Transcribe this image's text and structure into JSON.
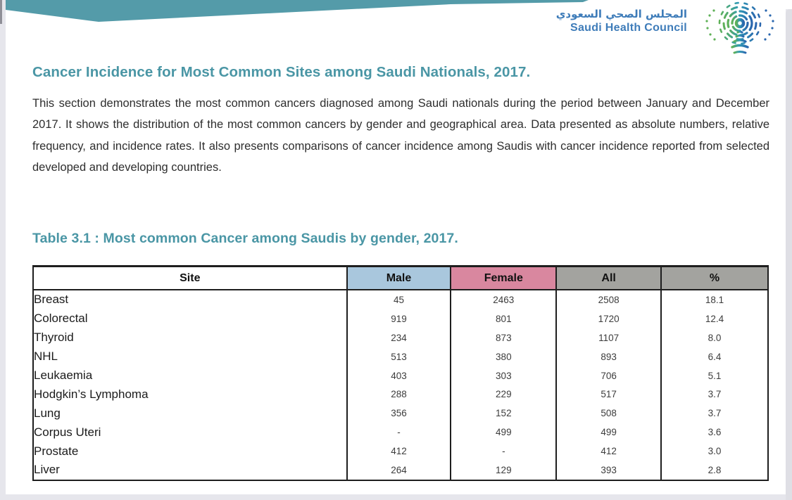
{
  "logo": {
    "arabic_name": "المجلس الصحي السعودي",
    "english_name": "Saudi Health Council",
    "icon": "saudi-health-council-radial-palm-icon"
  },
  "heading": "Cancer Incidence for Most Common Sites among Saudi Nationals, 2017.",
  "paragraph": "This section demonstrates the most common cancers diagnosed among Saudi nationals during the period between January and December 2017. It shows the distribution of the most common cancers by gender and geographical area. Data presented as absolute numbers, relative frequency, and incidence rates. It also presents comparisons of cancer incidence among Saudis with cancer incidence reported from selected developed and developing countries.",
  "table_title": "Table 3.1 : Most common Cancer among Saudis by gender, 2017.",
  "table": {
    "columns": [
      "Site",
      "Male",
      "Female",
      "All",
      "%"
    ],
    "rows": [
      {
        "site": "Breast",
        "male": "45",
        "female": "2463",
        "all": "2508",
        "pct": "18.1"
      },
      {
        "site": "Colorectal",
        "male": "919",
        "female": "801",
        "all": "1720",
        "pct": "12.4"
      },
      {
        "site": "Thyroid",
        "male": "234",
        "female": "873",
        "all": "1107",
        "pct": "8.0"
      },
      {
        "site": "NHL",
        "male": "513",
        "female": "380",
        "all": "893",
        "pct": "6.4"
      },
      {
        "site": "Leukaemia",
        "male": "403",
        "female": "303",
        "all": "706",
        "pct": "5.1"
      },
      {
        "site": "Hodgkin’s Lymphoma",
        "male": "288",
        "female": "229",
        "all": "517",
        "pct": "3.7"
      },
      {
        "site": "Lung",
        "male": "356",
        "female": "152",
        "all": "508",
        "pct": "3.7"
      },
      {
        "site": "Corpus Uteri",
        "male": "-",
        "female": "499",
        "all": "499",
        "pct": "3.6"
      },
      {
        "site": "Prostate",
        "male": "412",
        "female": "-",
        "all": "412",
        "pct": "3.0"
      },
      {
        "site": "Liver",
        "male": "264",
        "female": "129",
        "all": "393",
        "pct": "2.8"
      }
    ]
  },
  "colors": {
    "teal": "#4a96a5",
    "band-teal": "#549ba9",
    "logo-blue": "#3e7cb9",
    "male-blue": "#a9c7dd",
    "female-pink": "#d9879f",
    "hdr-gray": "#a3a39f",
    "border": "#1e1e1e"
  }
}
